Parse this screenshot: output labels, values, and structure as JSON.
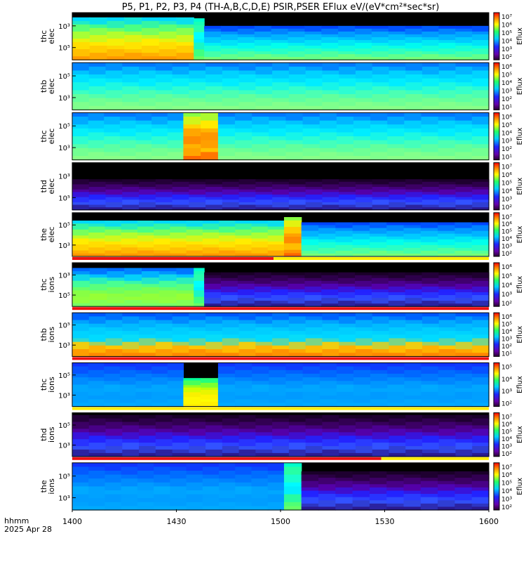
{
  "title": "P5, P1, P2, P3, P4 (TH-A,B,C,D,E) PSIR,PSER EFlux eV/(eV*cm²*sec*sr)",
  "footer": {
    "time_label": "hhmm",
    "date_label": "2025 Apr 28"
  },
  "colors": {
    "bar_red": "#ee1111",
    "bar_yellow": "#ffee00",
    "background_black": "#000000"
  },
  "chart_data": {
    "type": "heatmap",
    "x_axis": {
      "ticks": [
        "1400",
        "1430",
        "1500",
        "1530",
        "1600"
      ],
      "range": [
        "14:00",
        "16:00"
      ]
    },
    "colorbar_label": "Eflux",
    "panels": [
      {
        "label": [
          "thc",
          "elec"
        ],
        "yticks": [
          "10³",
          "10⁵"
        ],
        "cbar_ticks": [
          "10⁷",
          "10⁶",
          "10⁵",
          "10⁴",
          "10³",
          "10²"
        ],
        "segments": [
          {
            "start": "14:00",
            "end": "14:35",
            "tone": "warm",
            "top": 0.1
          },
          {
            "start": "14:35",
            "end": "14:38",
            "tone": "cyanbright",
            "top": 0.12
          },
          {
            "start": "14:38",
            "end": "16:00",
            "tone": "cyan",
            "top": 0.28
          }
        ],
        "status_bar": []
      },
      {
        "label": [
          "thb",
          "elec"
        ],
        "yticks": [
          "10⁵",
          "10³"
        ],
        "cbar_ticks": [
          "10⁶",
          "10⁵",
          "10⁴",
          "10³",
          "10²",
          "10¹"
        ],
        "segments": [
          {
            "start": "14:00",
            "end": "16:00",
            "tone": "aqua",
            "top": 0.0
          }
        ],
        "status_bar": []
      },
      {
        "label": [
          "thc",
          "elec"
        ],
        "yticks": [
          "10⁵",
          "10³"
        ],
        "cbar_ticks": [
          "10⁶",
          "10⁵",
          "10⁴",
          "10³",
          "10²",
          "10¹"
        ],
        "segments": [
          {
            "start": "14:00",
            "end": "14:32",
            "tone": "aqua",
            "top": 0.0
          },
          {
            "start": "14:32",
            "end": "14:42",
            "tone": "hot",
            "top": 0.0
          },
          {
            "start": "14:42",
            "end": "16:00",
            "tone": "aqua",
            "top": 0.0
          }
        ],
        "status_bar": []
      },
      {
        "label": [
          "thd",
          "elec"
        ],
        "yticks": [
          "10³",
          "10⁵"
        ],
        "cbar_ticks": [
          "10⁷",
          "10⁶",
          "10⁵",
          "10⁴",
          "10³",
          "10²"
        ],
        "segments": [
          {
            "start": "14:00",
            "end": "16:00",
            "tone": "purple",
            "top": 0.35
          }
        ],
        "status_bar": []
      },
      {
        "label": [
          "the",
          "elec"
        ],
        "yticks": [
          "10⁵",
          "10³"
        ],
        "cbar_ticks": [
          "10⁷",
          "10⁶",
          "10⁵",
          "10⁴",
          "10³",
          "10²"
        ],
        "segments": [
          {
            "start": "14:00",
            "end": "15:01",
            "tone": "warm",
            "top": 0.18
          },
          {
            "start": "15:01",
            "end": "15:06",
            "tone": "hot",
            "top": 0.1
          },
          {
            "start": "15:06",
            "end": "16:00",
            "tone": "cyan",
            "top": 0.22
          }
        ],
        "status_bar": [
          {
            "start": "14:00",
            "end": "14:58",
            "color": "red"
          },
          {
            "start": "14:58",
            "end": "16:00",
            "color": "yellow"
          }
        ]
      },
      {
        "label": [
          "thc",
          "ions"
        ],
        "yticks": [
          "10³",
          "10⁵"
        ],
        "cbar_ticks": [
          "10⁶",
          "10⁵",
          "10⁴",
          "10³",
          "10²"
        ],
        "segments": [
          {
            "start": "14:00",
            "end": "14:35",
            "tone": "green",
            "top": 0.12
          },
          {
            "start": "14:35",
            "end": "14:38",
            "tone": "cyanbright",
            "top": 0.12
          },
          {
            "start": "14:38",
            "end": "16:00",
            "tone": "purple",
            "top": 0.22
          }
        ],
        "status_bar": [
          {
            "start": "14:00",
            "end": "16:00",
            "color": "red"
          }
        ]
      },
      {
        "label": [
          "thb",
          "ions"
        ],
        "yticks": [
          "10⁵",
          "10³"
        ],
        "cbar_ticks": [
          "10⁶",
          "10⁵",
          "10⁴",
          "10³",
          "10²",
          "10¹"
        ],
        "segments": [
          {
            "start": "14:00",
            "end": "16:00",
            "tone": "ionband",
            "top": 0.0
          }
        ],
        "status_bar": [
          {
            "start": "14:00",
            "end": "16:00",
            "color": "red"
          }
        ]
      },
      {
        "label": [
          "thc",
          "ions"
        ],
        "yticks": [
          "10⁵",
          "10³"
        ],
        "cbar_ticks": [
          "10⁵",
          "10⁴",
          "10³",
          "10²"
        ],
        "segments": [
          {
            "start": "14:00",
            "end": "14:32",
            "tone": "blue",
            "top": 0.0
          },
          {
            "start": "14:32",
            "end": "14:42",
            "tone": "hotions",
            "top": 0.35
          },
          {
            "start": "14:42",
            "end": "16:00",
            "tone": "blue",
            "top": 0.0
          }
        ],
        "status_bar": [
          {
            "start": "14:00",
            "end": "16:00",
            "color": "yellow"
          }
        ]
      },
      {
        "label": [
          "thd",
          "ions"
        ],
        "yticks": [
          "10⁵",
          "10³"
        ],
        "cbar_ticks": [
          "10⁷",
          "10⁶",
          "10⁵",
          "10⁴",
          "10³",
          "10²"
        ],
        "segments": [
          {
            "start": "14:00",
            "end": "16:00",
            "tone": "purple",
            "top": 0.05
          }
        ],
        "status_bar": [
          {
            "start": "14:00",
            "end": "15:29",
            "color": "red"
          },
          {
            "start": "15:29",
            "end": "16:00",
            "color": "yellow"
          }
        ]
      },
      {
        "label": [
          "the",
          "ions"
        ],
        "yticks": [
          "10⁵",
          "10³"
        ],
        "cbar_ticks": [
          "10⁷",
          "10⁶",
          "10⁵",
          "10⁴",
          "10³",
          "10²"
        ],
        "segments": [
          {
            "start": "14:00",
            "end": "15:01",
            "tone": "blue",
            "top": 0.0
          },
          {
            "start": "15:01",
            "end": "15:06",
            "tone": "cyanbright",
            "top": 0.0
          },
          {
            "start": "15:06",
            "end": "16:00",
            "tone": "purple",
            "top": 0.18
          }
        ],
        "status_bar": []
      }
    ]
  }
}
